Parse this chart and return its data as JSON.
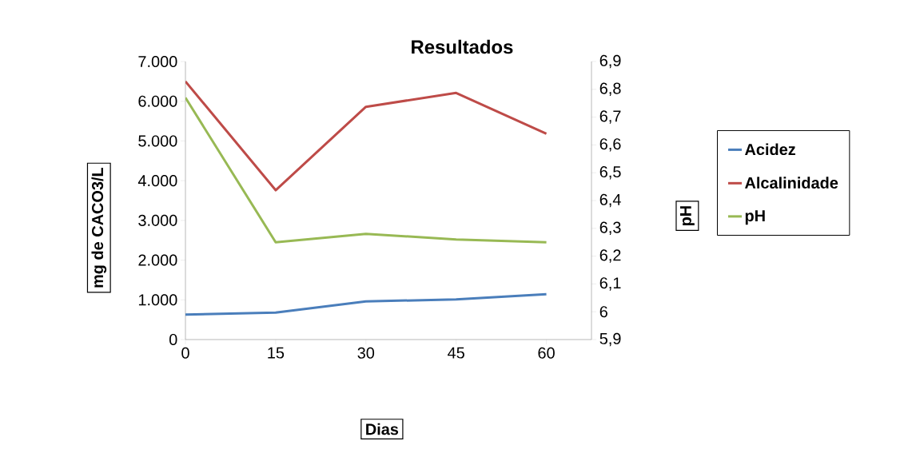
{
  "chart_data": {
    "type": "line",
    "title": "Resultados",
    "xlabel": "Dias",
    "ylabel": "mg de CACO3/L",
    "y2label": "pH",
    "x": [
      0,
      15,
      30,
      45,
      60
    ],
    "xlim": [
      0,
      67.5
    ],
    "xticks": [
      0,
      15,
      30,
      45,
      60
    ],
    "ylim": [
      0,
      7000
    ],
    "yticks": [
      0,
      {
        "value": 1000,
        "label": "1.000"
      },
      {
        "value": 2000,
        "label": "2.000"
      },
      {
        "value": 3000,
        "label": "3.000"
      },
      {
        "value": 4000,
        "label": "4.000"
      },
      {
        "value": 5000,
        "label": "5.000"
      },
      {
        "value": 6000,
        "label": "6.000"
      },
      {
        "value": 7000,
        "label": "7.000"
      }
    ],
    "y2lim": [
      5.9,
      6.9
    ],
    "y2ticks": [
      {
        "value": 5.9,
        "label": "5,9"
      },
      6,
      {
        "value": 6.1,
        "label": "6,1"
      },
      {
        "value": 6.2,
        "label": "6,2"
      },
      {
        "value": 6.3,
        "label": "6,3"
      },
      {
        "value": 6.4,
        "label": "6,4"
      },
      {
        "value": 6.5,
        "label": "6,5"
      },
      {
        "value": 6.6,
        "label": "6,6"
      },
      {
        "value": 6.7,
        "label": "6,7"
      },
      {
        "value": 6.8,
        "label": "6,8"
      },
      {
        "value": 6.9,
        "label": "6,9"
      }
    ],
    "series": [
      {
        "name": "Acidez",
        "color": "#4a7ebb",
        "values": [
          630,
          680,
          960,
          1010,
          1140
        ]
      },
      {
        "name": "Alcalinidade",
        "color": "#be4b48",
        "values": [
          6500,
          3760,
          5860,
          6210,
          5180
        ]
      },
      {
        "name": "pH",
        "color": "#98b954",
        "axis": "y2",
        "values": [
          6.77,
          6.25,
          6.28,
          6.26,
          6.25
        ]
      }
    ],
    "legend": "right",
    "grid": false
  }
}
